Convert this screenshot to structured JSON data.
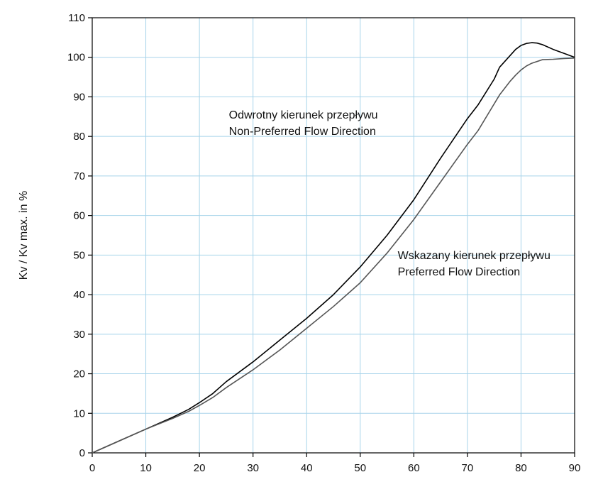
{
  "chart_data": {
    "type": "line",
    "title": "",
    "xlabel": "",
    "ylabel": "Kv / Kv max. in %",
    "xlim": [
      0,
      90
    ],
    "ylim": [
      0,
      110
    ],
    "xticks": [
      0,
      10,
      20,
      30,
      40,
      50,
      60,
      70,
      80,
      90
    ],
    "yticks": [
      0,
      10,
      20,
      30,
      40,
      50,
      60,
      70,
      80,
      90,
      100,
      110
    ],
    "grid": true,
    "grid_color": "#a8d4ea",
    "legend": "none",
    "series": [
      {
        "color": "#000000",
        "x": [
          0,
          5,
          10,
          15,
          18,
          20,
          22.5,
          25,
          30,
          35,
          40,
          45,
          47.5,
          50,
          55,
          60,
          65,
          70,
          72,
          75,
          76,
          78,
          79,
          80,
          81,
          82,
          83,
          84,
          86,
          88,
          90
        ],
        "y": [
          0,
          3,
          6,
          9,
          11,
          12.7,
          15,
          18,
          23,
          28.5,
          34,
          40,
          43.5,
          47,
          55,
          64,
          74.5,
          84.5,
          88,
          94.5,
          97.5,
          100.5,
          102,
          103,
          103.5,
          103.7,
          103.6,
          103.2,
          102,
          101,
          100
        ]
      },
      {
        "color": "#555555",
        "x": [
          0,
          5,
          10,
          15,
          18,
          20,
          22.5,
          25,
          30,
          35,
          40,
          45,
          47.5,
          50,
          55,
          60,
          65,
          70,
          72,
          74,
          76,
          78,
          79,
          80,
          81,
          82,
          84,
          86,
          88,
          90
        ],
        "y": [
          0,
          3,
          6,
          8.7,
          10.5,
          12,
          14,
          16.5,
          21,
          26,
          31.5,
          37,
          40,
          43,
          50.5,
          59,
          68.5,
          78,
          81.5,
          86,
          90.5,
          94,
          95.5,
          96.8,
          97.8,
          98.5,
          99.4,
          99.5,
          99.7,
          99.8
        ]
      }
    ],
    "annotations": [
      {
        "lines": [
          "Odwrotny kierunek przepływu",
          "Non-Preferred Flow Direction"
        ],
        "x": 25.5,
        "y": 84.5
      },
      {
        "lines": [
          "Wskazany kierunek przepływu",
          "Preferred Flow Direction"
        ],
        "x": 57,
        "y": 49
      }
    ]
  }
}
